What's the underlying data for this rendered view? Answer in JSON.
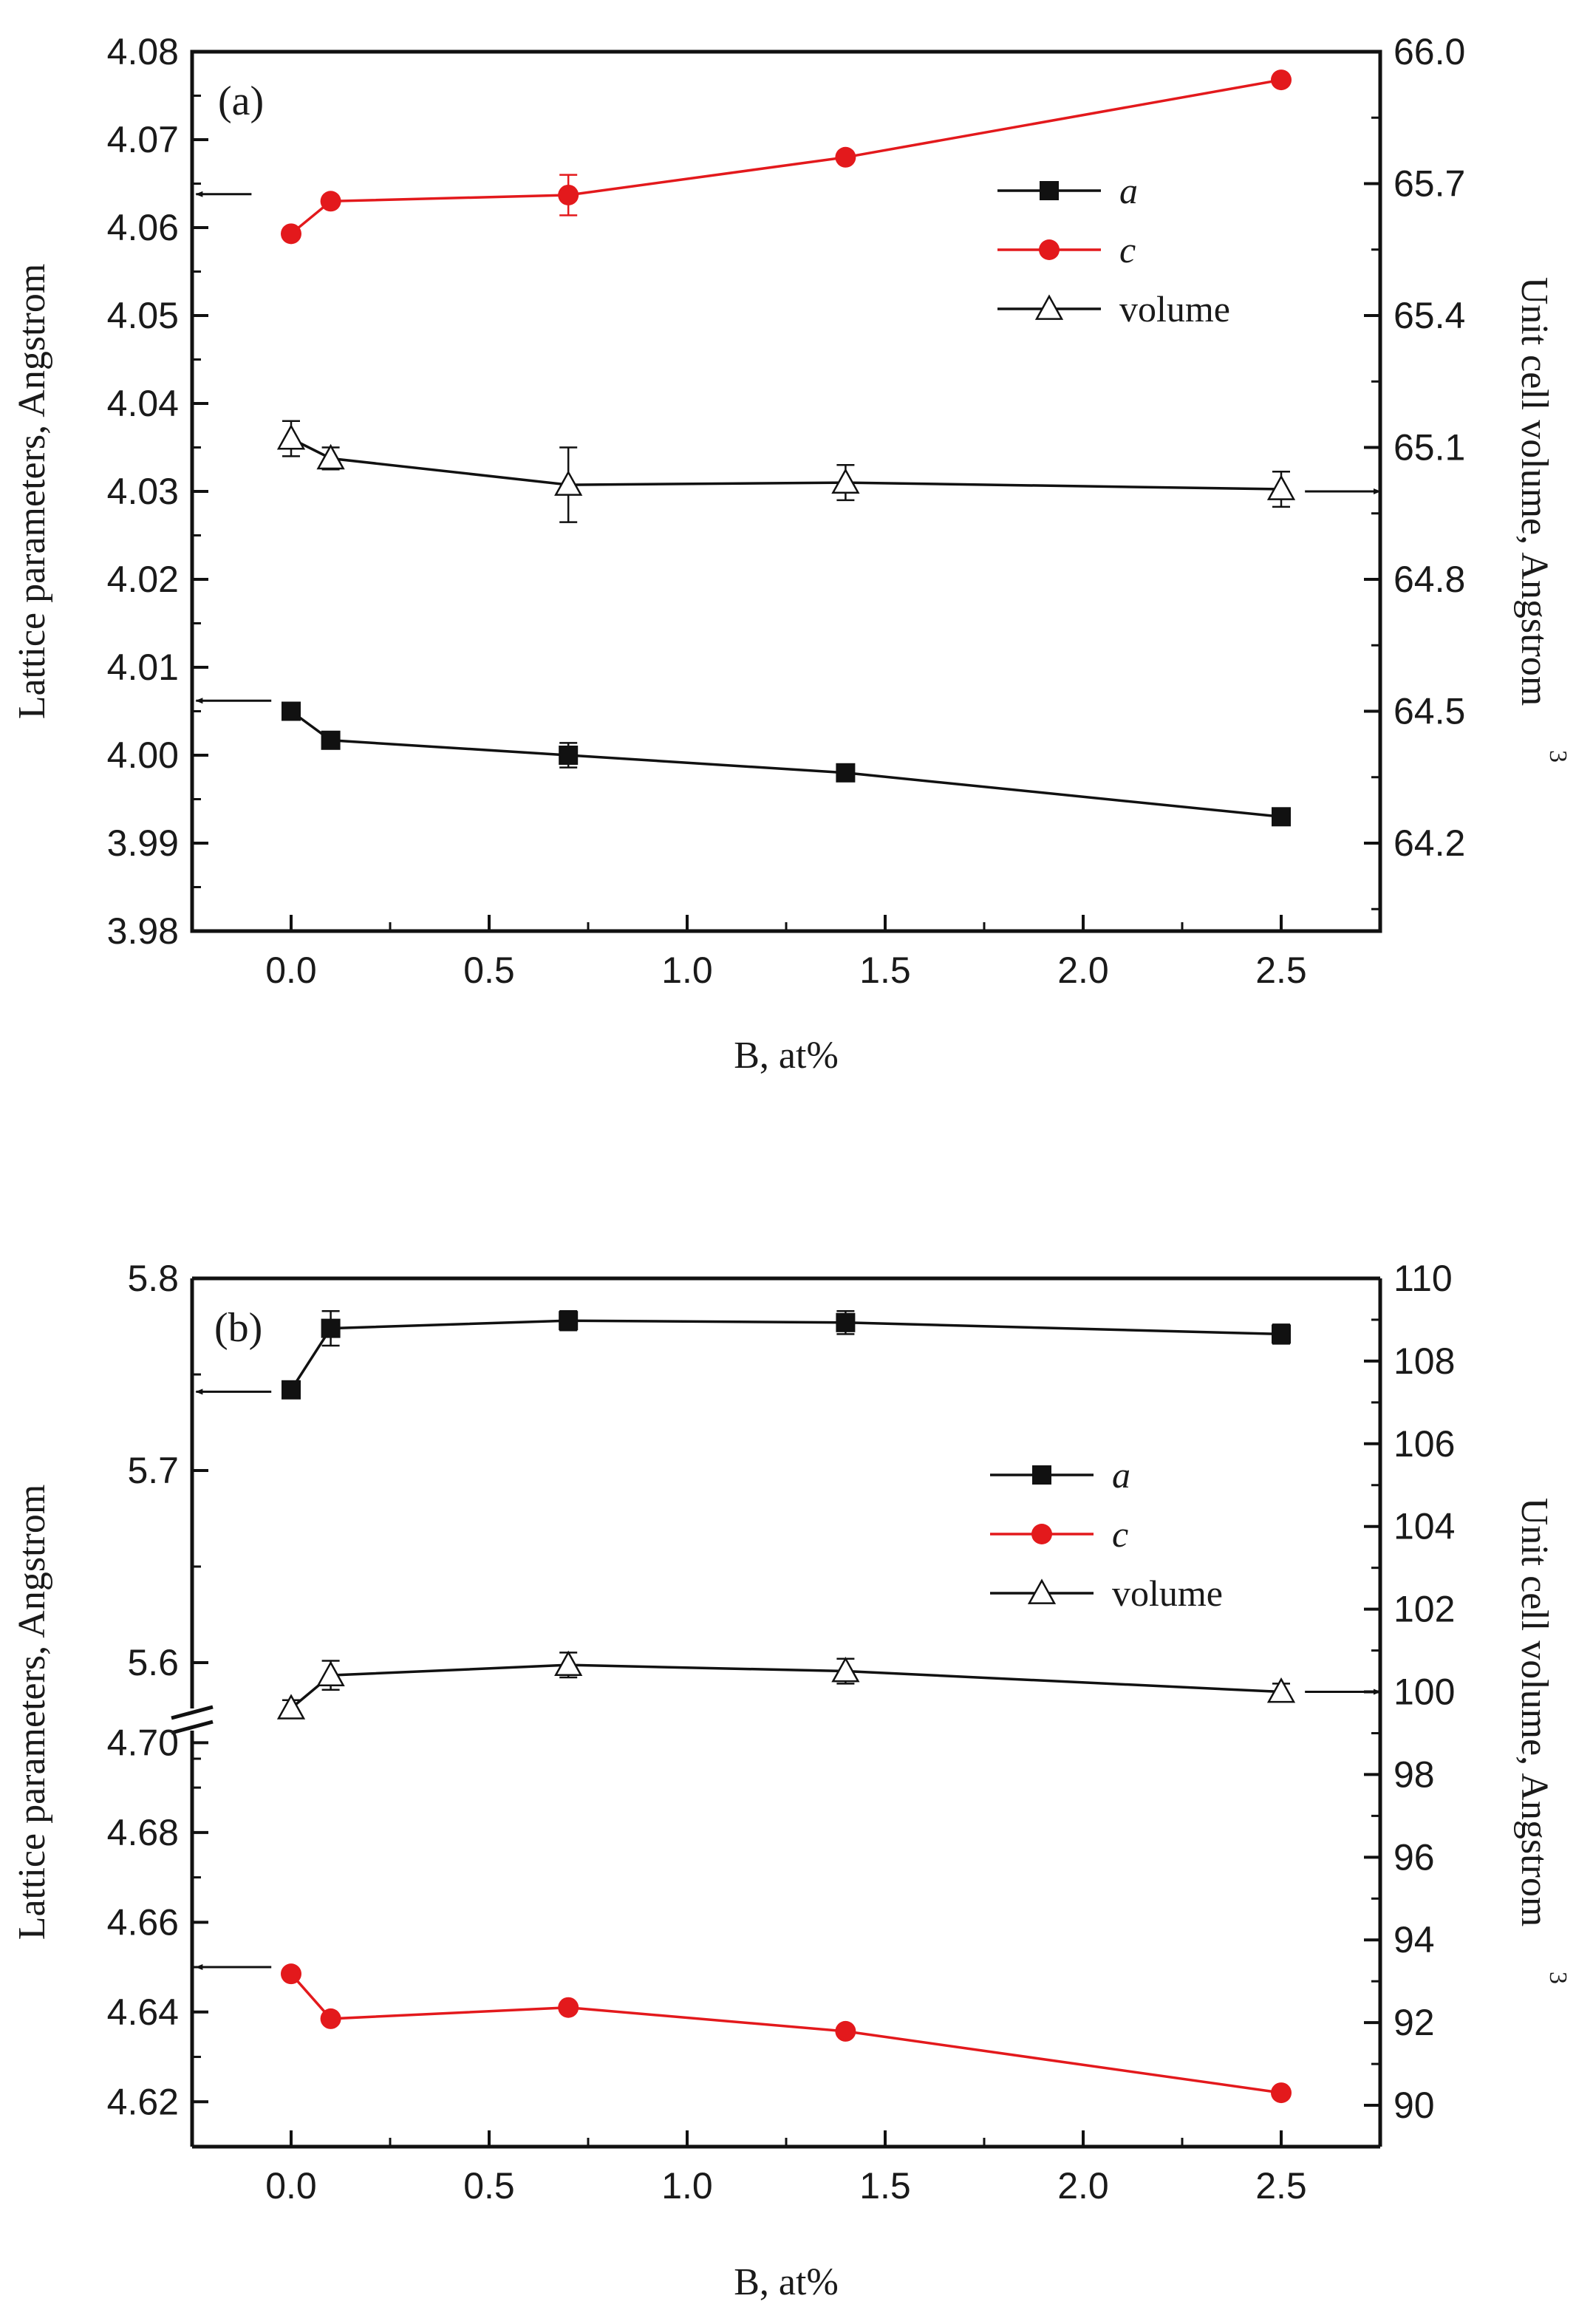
{
  "figure": {
    "x_axis_label": "B, at%"
  },
  "colors": {
    "black": "#111111",
    "red": "#e3191c",
    "frame": "#111111"
  },
  "chart_data": [
    {
      "type": "line",
      "panel": "(a)",
      "xlabel": "B, at%",
      "ylabel_left": "Lattice parameters, Angstrom",
      "ylabel_right": "Unit cell volume, Angstrom",
      "ylabel_right_sup": "3",
      "xlim": [
        -0.25,
        2.75
      ],
      "ylim_left": [
        3.98,
        4.08
      ],
      "ylim_right": [
        64.0,
        66.0
      ],
      "x_ticks": [
        0.0,
        0.5,
        1.0,
        1.5,
        2.0,
        2.5
      ],
      "x_tick_labels": [
        "0.0",
        "0.5",
        "1.0",
        "1.5",
        "2.0",
        "2.5"
      ],
      "y_left_tick_labels": [
        "3.98",
        "3.99",
        "4.00",
        "4.01",
        "4.02",
        "4.03",
        "4.04",
        "4.05",
        "4.06",
        "4.07",
        "4.08"
      ],
      "y_right_tick_labels": [
        "64.2",
        "64.5",
        "64.8",
        "65.1",
        "65.4",
        "65.7",
        "66.0"
      ],
      "legend": [
        "a",
        "c",
        "volume"
      ],
      "series": [
        {
          "name": "a",
          "axis": "left",
          "marker": "square",
          "color": "#111111",
          "x": [
            0.0,
            0.1,
            0.7,
            1.4,
            2.5
          ],
          "y": [
            4.005,
            4.0017,
            4.0,
            3.998,
            3.993
          ],
          "err": [
            0.0,
            0.0,
            0.0014,
            0.0,
            0.0
          ]
        },
        {
          "name": "c",
          "axis": "left",
          "marker": "circle",
          "color": "#e3191c",
          "x": [
            0.0,
            0.1,
            0.7,
            1.4,
            2.5
          ],
          "y": [
            4.0593,
            4.063,
            4.0637,
            4.068,
            4.0768
          ],
          "err": [
            0.0,
            0.0,
            0.0023,
            0.0,
            0.0
          ]
        },
        {
          "name": "volume",
          "axis": "right",
          "marker": "triangle-open",
          "color": "#111111",
          "x": [
            0.0,
            0.1,
            0.7,
            1.4,
            2.5
          ],
          "y": [
            65.12,
            65.075,
            65.015,
            65.02,
            65.005
          ],
          "err": [
            0.04,
            0.025,
            0.085,
            0.04,
            0.04
          ]
        }
      ],
      "axis_arrows": [
        {
          "direction": "left",
          "series": "c"
        },
        {
          "direction": "left",
          "series": "a"
        },
        {
          "direction": "right",
          "series": "volume"
        }
      ]
    },
    {
      "type": "line",
      "panel": "(b)",
      "xlabel": "B, at%",
      "ylabel_left": "Lattice parameters, Angstrom",
      "ylabel_right": "Unit cell volume, Angstrom",
      "ylabel_right_sup": "3",
      "xlim": [
        -0.25,
        2.75
      ],
      "ylim_left_upper": [
        5.57,
        5.8
      ],
      "ylim_left_lower": [
        4.61,
        4.705
      ],
      "ylim_right": [
        89.0,
        110.0
      ],
      "x_ticks": [
        0.0,
        0.5,
        1.0,
        1.5,
        2.0,
        2.5
      ],
      "x_tick_labels": [
        "0.0",
        "0.5",
        "1.0",
        "1.5",
        "2.0",
        "2.5"
      ],
      "y_left_upper_tick_labels": [
        "5.6",
        "5.7",
        "5.8"
      ],
      "y_left_lower_tick_labels": [
        "4.62",
        "4.64",
        "4.66",
        "4.68",
        "4.70"
      ],
      "y_right_tick_labels": [
        "90",
        "92",
        "94",
        "96",
        "98",
        "100",
        "102",
        "104",
        "106",
        "108",
        "110"
      ],
      "legend": [
        "a",
        "c",
        "volume"
      ],
      "series": [
        {
          "name": "a",
          "axis": "left-upper",
          "marker": "square",
          "color": "#111111",
          "x": [
            0.0,
            0.1,
            0.7,
            1.4,
            2.5
          ],
          "y": [
            5.742,
            5.774,
            5.778,
            5.777,
            5.771
          ],
          "err": [
            0.0,
            0.009,
            0.005,
            0.006,
            0.005
          ]
        },
        {
          "name": "c",
          "axis": "left-lower",
          "marker": "circle",
          "color": "#e3191c",
          "x": [
            0.0,
            0.1,
            0.7,
            1.4,
            2.5
          ],
          "y": [
            4.6485,
            4.6385,
            4.641,
            4.6357,
            4.622
          ],
          "err": [
            0.0,
            0.0,
            0.0,
            0.0,
            0.0
          ]
        },
        {
          "name": "volume",
          "axis": "right",
          "marker": "triangle-open",
          "color": "#111111",
          "x": [
            0.0,
            0.1,
            0.7,
            1.4,
            2.5
          ],
          "y": [
            99.6,
            100.4,
            100.65,
            100.5,
            100.0
          ],
          "err": [
            0.2,
            0.35,
            0.3,
            0.3,
            0.2
          ]
        }
      ],
      "axis_arrows": [
        {
          "direction": "left",
          "series": "a"
        },
        {
          "direction": "left",
          "series": "c"
        },
        {
          "direction": "right",
          "series": "volume"
        }
      ]
    }
  ]
}
